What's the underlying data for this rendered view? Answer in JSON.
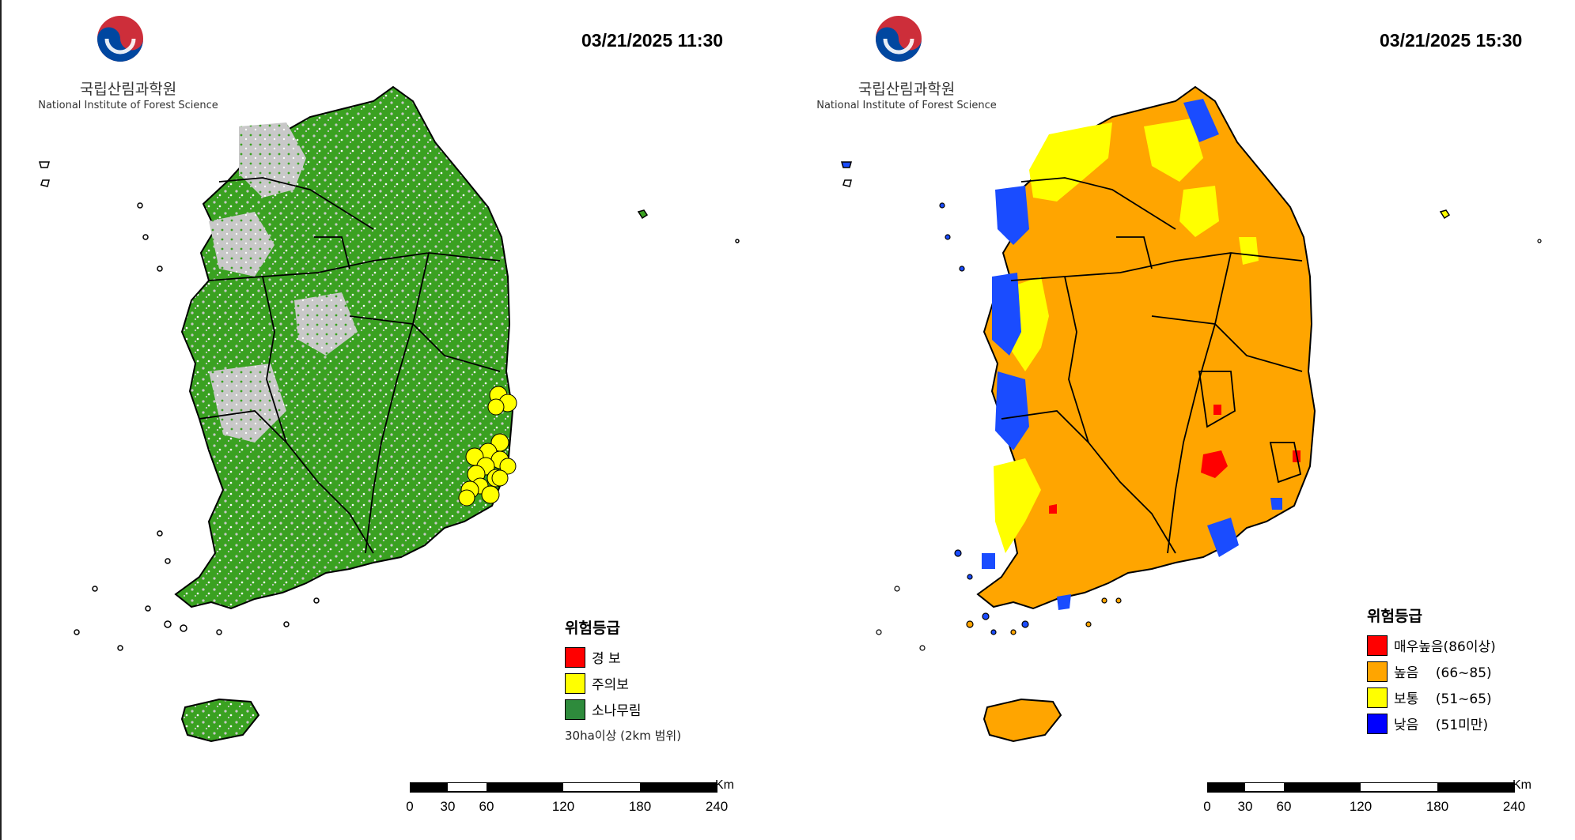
{
  "org": {
    "name_ko": "국립산림과학원",
    "name_en": "National Institute of Forest Science"
  },
  "panels": [
    {
      "timestamp": "03/21/2025 11:30",
      "legend": {
        "title": "위험등급",
        "items": [
          {
            "label": "경 보",
            "color": "#ff0000"
          },
          {
            "label": "주의보",
            "color": "#ffff00"
          },
          {
            "label": "소나무림",
            "color": "#2e8b3c"
          }
        ],
        "note": "30ha이상 (2km 범위)"
      },
      "scale": {
        "unit": "Km",
        "ticks": [
          "0",
          "30",
          "60",
          "120",
          "180",
          "240"
        ]
      }
    },
    {
      "timestamp": "03/21/2025 15:30",
      "legend": {
        "title": "위험등급",
        "items": [
          {
            "label": "매우높음(86이상)",
            "color": "#ff0000"
          },
          {
            "label": "높음    (66~85)",
            "color": "#ffa500"
          },
          {
            "label": "보통    (51~65)",
            "color": "#ffff00"
          },
          {
            "label": "낮음    (51미만)",
            "color": "#0000ff"
          }
        ]
      },
      "scale": {
        "unit": "Km",
        "ticks": [
          "0",
          "30",
          "60",
          "120",
          "180",
          "240"
        ]
      }
    }
  ],
  "colors": {
    "forest": "#3aa121",
    "nonforest": "#c8c8c8",
    "high": "#ffa500",
    "moderate": "#ffff00",
    "low": "#1a4cff",
    "very_high": "#ff0000"
  },
  "icons": [
    "logo-taegeuk-icon"
  ]
}
